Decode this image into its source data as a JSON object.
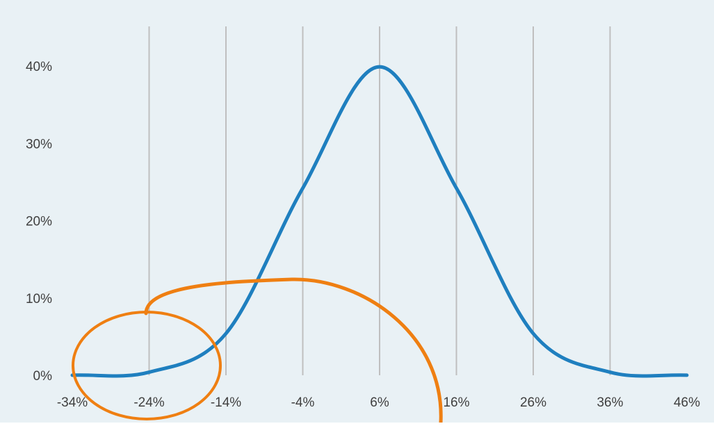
{
  "chart_data": {
    "type": "line",
    "title": "",
    "xlabel": "",
    "ylabel": "",
    "x_ticks": [
      "-34%",
      "-24%",
      "-14%",
      "-4%",
      "6%",
      "16%",
      "26%",
      "36%",
      "46%"
    ],
    "y_ticks": [
      "0%",
      "10%",
      "20%",
      "30%",
      "40%"
    ],
    "xlim": [
      -34,
      46
    ],
    "ylim": [
      0,
      40
    ],
    "grid": "vertical",
    "legend": "none",
    "series": [
      {
        "x": [
          -34,
          -24,
          -14,
          -4,
          6,
          16,
          26,
          36,
          46
        ],
        "y": [
          0.01,
          0.4,
          5.4,
          24.2,
          39.9,
          24.2,
          5.4,
          0.4,
          0.01
        ]
      }
    ],
    "annotations": [
      {
        "type": "hand-drawn circle",
        "around_x": -24,
        "around_y": 0
      },
      {
        "type": "hand-drawn curve",
        "from_x": -24,
        "to_x": 16
      }
    ]
  },
  "colors": {
    "plot_background": "#e9f1f5",
    "series_line": "#1f7fbf",
    "annotation": "#ef7f12",
    "grid": "#bfbfbf",
    "tick_text": "#404040"
  }
}
